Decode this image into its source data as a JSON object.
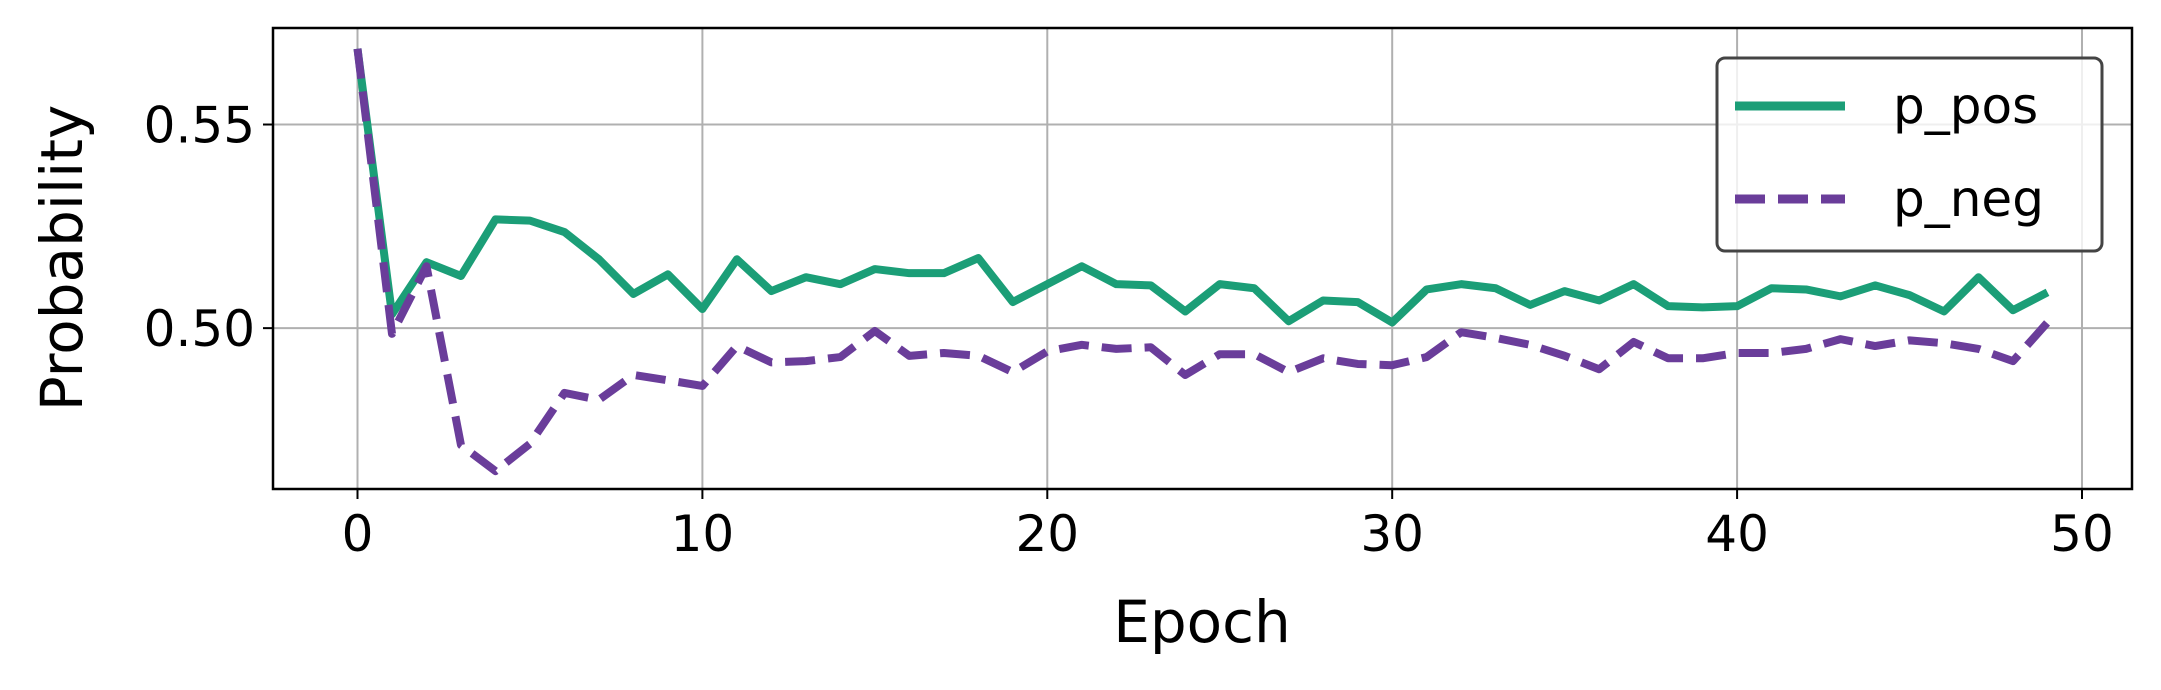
{
  "chart_data": {
    "type": "line",
    "xlabel": "Epoch",
    "ylabel": "Probability",
    "x": [
      0,
      1,
      2,
      3,
      4,
      5,
      6,
      7,
      8,
      9,
      10,
      11,
      12,
      13,
      14,
      15,
      16,
      17,
      18,
      19,
      20,
      21,
      22,
      23,
      24,
      25,
      26,
      27,
      28,
      29,
      30,
      31,
      32,
      33,
      34,
      35,
      36,
      37,
      38,
      39,
      40,
      41,
      42,
      43,
      44,
      45,
      46,
      47,
      48,
      49
    ],
    "series": [
      {
        "name": "p_pos",
        "color": "#1b9e77",
        "dash": false,
        "values": [
          0.5686,
          0.5034,
          0.5162,
          0.5128,
          0.5267,
          0.5264,
          0.5236,
          0.5169,
          0.5084,
          0.5132,
          0.5047,
          0.5169,
          0.5091,
          0.5125,
          0.5108,
          0.5145,
          0.5135,
          0.5135,
          0.5172,
          0.5064,
          0.5108,
          0.5152,
          0.5108,
          0.5105,
          0.5041,
          0.5108,
          0.5098,
          0.5017,
          0.5068,
          0.5064,
          0.5014,
          0.5095,
          0.5108,
          0.5098,
          0.5057,
          0.5091,
          0.5068,
          0.5108,
          0.5054,
          0.5051,
          0.5054,
          0.5098,
          0.5095,
          0.5078,
          0.5105,
          0.5081,
          0.5041,
          0.5125,
          0.5044,
          0.5088
        ]
      },
      {
        "name": "p_neg",
        "color": "#6a3d9a",
        "dash": true,
        "values": [
          0.5686,
          0.4986,
          0.5152,
          0.4713,
          0.4649,
          0.4716,
          0.4841,
          0.4824,
          0.4885,
          0.4872,
          0.4858,
          0.4956,
          0.4916,
          0.4919,
          0.4929,
          0.4993,
          0.4932,
          0.4939,
          0.4932,
          0.4892,
          0.4943,
          0.4959,
          0.4949,
          0.4953,
          0.4885,
          0.4936,
          0.4936,
          0.4892,
          0.4926,
          0.4912,
          0.4909,
          0.4929,
          0.499,
          0.4976,
          0.4959,
          0.4932,
          0.4899,
          0.4966,
          0.4926,
          0.4926,
          0.4939,
          0.4939,
          0.4949,
          0.4973,
          0.4956,
          0.497,
          0.4963,
          0.4949,
          0.4919,
          0.5014
        ]
      }
    ],
    "xlim": [
      -2.45,
      51.45
    ],
    "xticks": [
      0,
      10,
      20,
      30,
      40,
      50
    ],
    "ylim": [
      0.4605,
      0.5737
    ],
    "yticks": [
      {
        "value": 0.5,
        "label": "0.50"
      },
      0.55
    ],
    "grid": true,
    "legend": "upper right"
  }
}
